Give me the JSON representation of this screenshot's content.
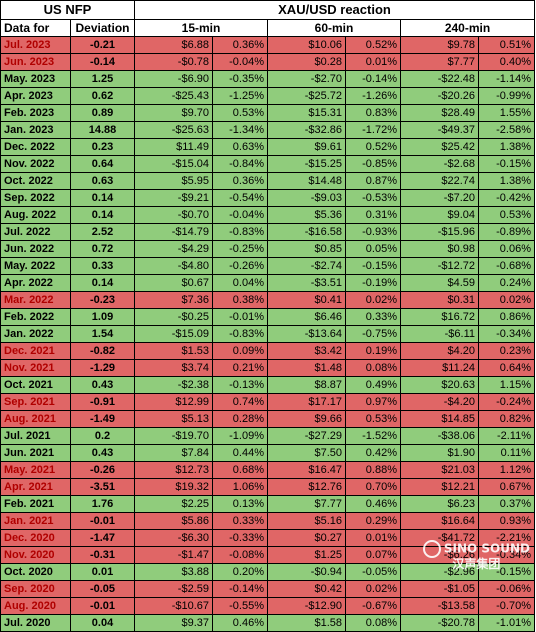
{
  "header": {
    "us_nfp": "US NFP",
    "reaction": "XAU/USD reaction",
    "data_for": "Data for",
    "deviation": "Deviation",
    "min15": "15-min",
    "min60": "60-min",
    "min240": "240-min"
  },
  "colors": {
    "positive": "#90cc7c",
    "negative": "#e06666"
  },
  "rows": [
    {
      "label": "Jul. 2023",
      "dev": "-0.21",
      "a": "$6.88",
      "ap": "0.36%",
      "b": "$10.06",
      "bp": "0.52%",
      "c": "$9.78",
      "cp": "0.51%",
      "color": "r"
    },
    {
      "label": "Jun. 2023",
      "dev": "-0.14",
      "a": "-$0.78",
      "ap": "-0.04%",
      "b": "$0.28",
      "bp": "0.01%",
      "c": "$7.77",
      "cp": "0.40%",
      "color": "r"
    },
    {
      "label": "May. 2023",
      "dev": "1.25",
      "a": "-$6.90",
      "ap": "-0.35%",
      "b": "-$2.70",
      "bp": "-0.14%",
      "c": "-$22.48",
      "cp": "-1.14%",
      "color": "g"
    },
    {
      "label": "Apr. 2023",
      "dev": "0.62",
      "a": "-$25.43",
      "ap": "-1.25%",
      "b": "-$25.72",
      "bp": "-1.26%",
      "c": "-$20.26",
      "cp": "-0.99%",
      "color": "g"
    },
    {
      "label": "Feb. 2023",
      "dev": "0.89",
      "a": "$9.70",
      "ap": "0.53%",
      "b": "$15.31",
      "bp": "0.83%",
      "c": "$28.49",
      "cp": "1.55%",
      "color": "g"
    },
    {
      "label": "Jan. 2023",
      "dev": "14.88",
      "a": "-$25.63",
      "ap": "-1.34%",
      "b": "-$32.86",
      "bp": "-1.72%",
      "c": "-$49.37",
      "cp": "-2.58%",
      "color": "g"
    },
    {
      "label": "Dec. 2022",
      "dev": "0.23",
      "a": "$11.49",
      "ap": "0.63%",
      "b": "$9.61",
      "bp": "0.52%",
      "c": "$25.42",
      "cp": "1.38%",
      "color": "g"
    },
    {
      "label": "Nov. 2022",
      "dev": "0.64",
      "a": "-$15.04",
      "ap": "-0.84%",
      "b": "-$15.25",
      "bp": "-0.85%",
      "c": "-$2.68",
      "cp": "-0.15%",
      "color": "g"
    },
    {
      "label": "Oct. 2022",
      "dev": "0.63",
      "a": "$5.95",
      "ap": "0.36%",
      "b": "$14.48",
      "bp": "0.87%",
      "c": "$22.74",
      "cp": "1.38%",
      "color": "g"
    },
    {
      "label": "Sep. 2022",
      "dev": "0.14",
      "a": "-$9.21",
      "ap": "-0.54%",
      "b": "-$9.03",
      "bp": "-0.53%",
      "c": "-$7.20",
      "cp": "-0.42%",
      "color": "g"
    },
    {
      "label": "Aug. 2022",
      "dev": "0.14",
      "a": "-$0.70",
      "ap": "-0.04%",
      "b": "$5.36",
      "bp": "0.31%",
      "c": "$9.04",
      "cp": "0.53%",
      "color": "g"
    },
    {
      "label": "Jul. 2022",
      "dev": "2.52",
      "a": "-$14.79",
      "ap": "-0.83%",
      "b": "-$16.58",
      "bp": "-0.93%",
      "c": "-$15.96",
      "cp": "-0.89%",
      "color": "g"
    },
    {
      "label": "Jun. 2022",
      "dev": "0.72",
      "a": "-$4.29",
      "ap": "-0.25%",
      "b": "$0.85",
      "bp": "0.05%",
      "c": "$0.98",
      "cp": "0.06%",
      "color": "g"
    },
    {
      "label": "May. 2022",
      "dev": "0.33",
      "a": "-$4.80",
      "ap": "-0.26%",
      "b": "-$2.74",
      "bp": "-0.15%",
      "c": "-$12.72",
      "cp": "-0.68%",
      "color": "g"
    },
    {
      "label": "Apr. 2022",
      "dev": "0.14",
      "a": "$0.67",
      "ap": "0.04%",
      "b": "-$3.51",
      "bp": "-0.19%",
      "c": "$4.59",
      "cp": "0.24%",
      "color": "g"
    },
    {
      "label": "Mar. 2022",
      "dev": "-0.23",
      "a": "$7.36",
      "ap": "0.38%",
      "b": "$0.41",
      "bp": "0.02%",
      "c": "$0.31",
      "cp": "0.02%",
      "color": "r"
    },
    {
      "label": "Feb. 2022",
      "dev": "1.09",
      "a": "-$0.25",
      "ap": "-0.01%",
      "b": "$6.46",
      "bp": "0.33%",
      "c": "$16.72",
      "cp": "0.86%",
      "color": "g"
    },
    {
      "label": "Jan. 2022",
      "dev": "1.54",
      "a": "-$15.09",
      "ap": "-0.83%",
      "b": "-$13.64",
      "bp": "-0.75%",
      "c": "-$6.11",
      "cp": "-0.34%",
      "color": "g"
    },
    {
      "label": "Dec. 2021",
      "dev": "-0.82",
      "a": "$1.53",
      "ap": "0.09%",
      "b": "$3.42",
      "bp": "0.19%",
      "c": "$4.20",
      "cp": "0.23%",
      "color": "r"
    },
    {
      "label": "Nov. 2021",
      "dev": "-1.29",
      "a": "$3.74",
      "ap": "0.21%",
      "b": "$1.48",
      "bp": "0.08%",
      "c": "$11.24",
      "cp": "0.64%",
      "color": "r"
    },
    {
      "label": "Oct. 2021",
      "dev": "0.43",
      "a": "-$2.38",
      "ap": "-0.13%",
      "b": "$8.87",
      "bp": "0.49%",
      "c": "$20.63",
      "cp": "1.15%",
      "color": "g"
    },
    {
      "label": "Sep. 2021",
      "dev": "-0.91",
      "a": "$12.99",
      "ap": "0.74%",
      "b": "$17.17",
      "bp": "0.97%",
      "c": "-$4.20",
      "cp": "-0.24%",
      "color": "r"
    },
    {
      "label": "Aug. 2021",
      "dev": "-1.49",
      "a": "$5.13",
      "ap": "0.28%",
      "b": "$9.66",
      "bp": "0.53%",
      "c": "$14.85",
      "cp": "0.82%",
      "color": "r"
    },
    {
      "label": "Jul. 2021",
      "dev": "0.2",
      "a": "-$19.70",
      "ap": "-1.09%",
      "b": "-$27.29",
      "bp": "-1.52%",
      "c": "-$38.06",
      "cp": "-2.11%",
      "color": "g"
    },
    {
      "label": "Jun. 2021",
      "dev": "0.43",
      "a": "$7.84",
      "ap": "0.44%",
      "b": "$7.50",
      "bp": "0.42%",
      "c": "$1.90",
      "cp": "0.11%",
      "color": "g"
    },
    {
      "label": "May. 2021",
      "dev": "-0.26",
      "a": "$12.73",
      "ap": "0.68%",
      "b": "$16.47",
      "bp": "0.88%",
      "c": "$21.03",
      "cp": "1.12%",
      "color": "r"
    },
    {
      "label": "Apr. 2021",
      "dev": "-3.51",
      "a": "$19.32",
      "ap": "1.06%",
      "b": "$12.76",
      "bp": "0.70%",
      "c": "$12.21",
      "cp": "0.67%",
      "color": "r"
    },
    {
      "label": "Feb. 2021",
      "dev": "1.76",
      "a": "$2.25",
      "ap": "0.13%",
      "b": "$7.77",
      "bp": "0.46%",
      "c": "$6.23",
      "cp": "0.37%",
      "color": "g"
    },
    {
      "label": "Jan. 2021",
      "dev": "-0.01",
      "a": "$5.86",
      "ap": "0.33%",
      "b": "$5.16",
      "bp": "0.29%",
      "c": "$16.64",
      "cp": "0.93%",
      "color": "r"
    },
    {
      "label": "Dec. 2020",
      "dev": "-1.47",
      "a": "-$6.30",
      "ap": "-0.33%",
      "b": "$0.27",
      "bp": "0.01%",
      "c": "-$41.72",
      "cp": "-2.21%",
      "color": "r"
    },
    {
      "label": "Nov. 2020",
      "dev": "-0.31",
      "a": "-$1.47",
      "ap": "-0.08%",
      "b": "$1.25",
      "bp": "0.07%",
      "c": "-$6.26",
      "cp": "-0.34%",
      "color": "r"
    },
    {
      "label": "Oct. 2020",
      "dev": "0.01",
      "a": "$3.88",
      "ap": "0.20%",
      "b": "-$0.94",
      "bp": "-0.05%",
      "c": "-$2.96",
      "cp": "-0.15%",
      "color": "g"
    },
    {
      "label": "Sep. 2020",
      "dev": "-0.05",
      "a": "-$2.59",
      "ap": "-0.14%",
      "b": "$0.42",
      "bp": "0.02%",
      "c": "-$1.05",
      "cp": "-0.06%",
      "color": "r"
    },
    {
      "label": "Aug. 2020",
      "dev": "-0.01",
      "a": "-$10.67",
      "ap": "-0.55%",
      "b": "-$12.90",
      "bp": "-0.67%",
      "c": "-$13.58",
      "cp": "-0.70%",
      "color": "r"
    },
    {
      "label": "Jul. 2020",
      "dev": "0.04",
      "a": "$9.37",
      "ap": "0.46%",
      "b": "$1.58",
      "bp": "0.08%",
      "c": "-$20.78",
      "cp": "-1.01%",
      "color": "g"
    }
  ],
  "watermark": {
    "text": "SINO SOUND",
    "subtext": "汉声集团",
    "icon": "logo-mark-icon"
  }
}
